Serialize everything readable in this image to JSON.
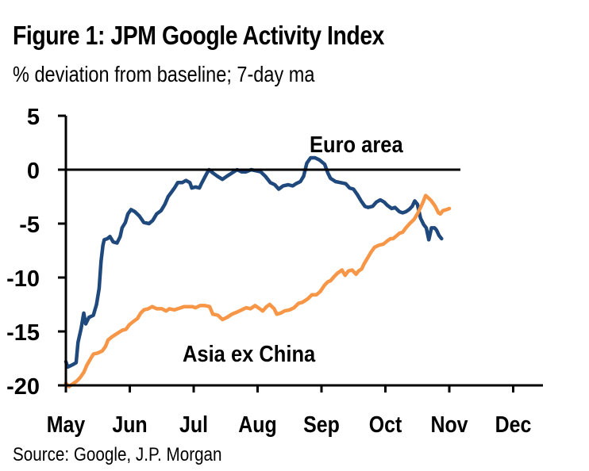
{
  "figure": {
    "title": "Figure 1: JPM Google Activity Index",
    "subtitle": "% deviation from baseline; 7-day ma",
    "source": "Source: Google, J.P. Morgan"
  },
  "colors": {
    "euro_area": "#1f497d",
    "asia_ex_china": "#f79646",
    "axis": "#000000"
  },
  "chart_data": {
    "type": "line",
    "title": "Figure 1: JPM Google Activity Index",
    "ylabel": "% deviation from baseline; 7-day ma",
    "xlabel": "",
    "x_unit": "months since start of May",
    "xlim": [
      0,
      7.5
    ],
    "ylim": [
      -20,
      5
    ],
    "yticks": [
      5,
      0,
      -5,
      -10,
      -15,
      -20
    ],
    "ytick_labels": [
      "5",
      "0",
      "-5",
      "-10",
      "-15",
      "-20"
    ],
    "xtick_labels": [
      "May",
      "Jun",
      "Jul",
      "Aug",
      "Sep",
      "Oct",
      "Nov",
      "Dec"
    ],
    "grid": false,
    "reference_line": 0,
    "series": [
      {
        "name": "Euro area",
        "color": "#1f497d",
        "points": [
          [
            0.0,
            -17.8
          ],
          [
            0.03,
            -18.3
          ],
          [
            0.1,
            -18.1
          ],
          [
            0.16,
            -17.9
          ],
          [
            0.19,
            -16.0
          ],
          [
            0.24,
            -14.7
          ],
          [
            0.28,
            -13.3
          ],
          [
            0.31,
            -14.3
          ],
          [
            0.36,
            -13.7
          ],
          [
            0.43,
            -13.5
          ],
          [
            0.48,
            -12.5
          ],
          [
            0.52,
            -11.0
          ],
          [
            0.55,
            -8.5
          ],
          [
            0.58,
            -7.0
          ],
          [
            0.6,
            -6.5
          ],
          [
            0.65,
            -6.4
          ],
          [
            0.69,
            -6.2
          ],
          [
            0.74,
            -6.7
          ],
          [
            0.8,
            -6.8
          ],
          [
            0.85,
            -6.2
          ],
          [
            0.88,
            -5.4
          ],
          [
            0.93,
            -4.9
          ],
          [
            0.97,
            -4.1
          ],
          [
            1.02,
            -3.7
          ],
          [
            1.08,
            -3.9
          ],
          [
            1.15,
            -4.3
          ],
          [
            1.22,
            -4.9
          ],
          [
            1.3,
            -5.0
          ],
          [
            1.36,
            -4.7
          ],
          [
            1.42,
            -4.1
          ],
          [
            1.49,
            -3.8
          ],
          [
            1.55,
            -3.2
          ],
          [
            1.6,
            -2.5
          ],
          [
            1.65,
            -2.1
          ],
          [
            1.7,
            -1.7
          ],
          [
            1.75,
            -1.2
          ],
          [
            1.82,
            -1.2
          ],
          [
            1.88,
            -1.0
          ],
          [
            1.94,
            -1.2
          ],
          [
            1.97,
            -1.7
          ],
          [
            2.03,
            -1.6
          ],
          [
            2.09,
            -1.7
          ],
          [
            2.12,
            -1.3
          ],
          [
            2.2,
            -0.4
          ],
          [
            2.24,
            0.0
          ],
          [
            2.3,
            -0.3
          ],
          [
            2.37,
            -0.6
          ],
          [
            2.45,
            -0.9
          ],
          [
            2.52,
            -0.6
          ],
          [
            2.6,
            -0.3
          ],
          [
            2.68,
            0.0
          ],
          [
            2.75,
            -0.2
          ],
          [
            2.82,
            -0.2
          ],
          [
            2.9,
            0.0
          ],
          [
            2.98,
            -0.1
          ],
          [
            3.05,
            -0.2
          ],
          [
            3.12,
            -0.6
          ],
          [
            3.2,
            -1.2
          ],
          [
            3.27,
            -1.4
          ],
          [
            3.33,
            -1.8
          ],
          [
            3.4,
            -1.5
          ],
          [
            3.48,
            -1.4
          ],
          [
            3.55,
            -1.5
          ],
          [
            3.6,
            -1.3
          ],
          [
            3.67,
            -1.1
          ],
          [
            3.72,
            -0.6
          ],
          [
            3.77,
            0.6
          ],
          [
            3.83,
            1.1
          ],
          [
            3.9,
            1.1
          ],
          [
            3.97,
            0.9
          ],
          [
            4.05,
            0.5
          ],
          [
            4.1,
            -0.3
          ],
          [
            4.14,
            -0.8
          ],
          [
            4.22,
            -1.1
          ],
          [
            4.3,
            -1.2
          ],
          [
            4.38,
            -1.3
          ],
          [
            4.44,
            -1.7
          ],
          [
            4.5,
            -1.8
          ],
          [
            4.56,
            -2.3
          ],
          [
            4.62,
            -2.9
          ],
          [
            4.68,
            -3.4
          ],
          [
            4.73,
            -3.5
          ],
          [
            4.8,
            -3.4
          ],
          [
            4.86,
            -3.0
          ],
          [
            4.92,
            -2.8
          ],
          [
            4.98,
            -3.0
          ],
          [
            5.03,
            -3.3
          ],
          [
            5.1,
            -3.6
          ],
          [
            5.15,
            -3.5
          ],
          [
            5.22,
            -3.9
          ],
          [
            5.27,
            -4.0
          ],
          [
            5.32,
            -3.9
          ],
          [
            5.37,
            -3.7
          ],
          [
            5.42,
            -3.4
          ],
          [
            5.46,
            -2.9
          ],
          [
            5.5,
            -3.2
          ],
          [
            5.55,
            -4.5
          ],
          [
            5.6,
            -5.1
          ],
          [
            5.64,
            -5.4
          ],
          [
            5.68,
            -6.5
          ],
          [
            5.72,
            -5.4
          ],
          [
            5.77,
            -5.4
          ],
          [
            5.8,
            -5.6
          ],
          [
            5.84,
            -6.1
          ],
          [
            5.88,
            -6.4
          ]
        ]
      },
      {
        "name": "Asia ex China",
        "color": "#f79646",
        "points": [
          [
            0.0,
            -19.8
          ],
          [
            0.05,
            -20.1
          ],
          [
            0.1,
            -19.9
          ],
          [
            0.17,
            -19.6
          ],
          [
            0.22,
            -19.3
          ],
          [
            0.28,
            -18.8
          ],
          [
            0.33,
            -18.1
          ],
          [
            0.38,
            -17.6
          ],
          [
            0.43,
            -17.1
          ],
          [
            0.5,
            -17.0
          ],
          [
            0.57,
            -16.8
          ],
          [
            0.62,
            -16.4
          ],
          [
            0.66,
            -15.8
          ],
          [
            0.72,
            -15.5
          ],
          [
            0.8,
            -15.2
          ],
          [
            0.88,
            -14.9
          ],
          [
            0.94,
            -14.8
          ],
          [
            0.99,
            -14.4
          ],
          [
            1.05,
            -14.1
          ],
          [
            1.12,
            -13.8
          ],
          [
            1.17,
            -13.3
          ],
          [
            1.22,
            -13.0
          ],
          [
            1.29,
            -12.9
          ],
          [
            1.35,
            -12.7
          ],
          [
            1.42,
            -12.9
          ],
          [
            1.5,
            -12.9
          ],
          [
            1.57,
            -13.1
          ],
          [
            1.62,
            -12.9
          ],
          [
            1.7,
            -13.0
          ],
          [
            1.75,
            -12.9
          ],
          [
            1.8,
            -12.8
          ],
          [
            1.85,
            -12.7
          ],
          [
            1.92,
            -12.7
          ],
          [
            1.98,
            -12.7
          ],
          [
            2.03,
            -12.8
          ],
          [
            2.1,
            -12.6
          ],
          [
            2.18,
            -12.6
          ],
          [
            2.25,
            -12.7
          ],
          [
            2.3,
            -13.4
          ],
          [
            2.38,
            -13.5
          ],
          [
            2.45,
            -13.9
          ],
          [
            2.52,
            -13.7
          ],
          [
            2.6,
            -13.4
          ],
          [
            2.68,
            -13.2
          ],
          [
            2.75,
            -13.0
          ],
          [
            2.82,
            -12.8
          ],
          [
            2.89,
            -12.9
          ],
          [
            2.96,
            -12.6
          ],
          [
            3.01,
            -12.8
          ],
          [
            3.08,
            -13.1
          ],
          [
            3.14,
            -12.7
          ],
          [
            3.19,
            -12.5
          ],
          [
            3.26,
            -12.9
          ],
          [
            3.3,
            -13.4
          ],
          [
            3.36,
            -13.3
          ],
          [
            3.42,
            -13.1
          ],
          [
            3.5,
            -13.0
          ],
          [
            3.57,
            -12.8
          ],
          [
            3.64,
            -12.4
          ],
          [
            3.7,
            -12.3
          ],
          [
            3.78,
            -12.0
          ],
          [
            3.85,
            -11.6
          ],
          [
            3.92,
            -11.6
          ],
          [
            3.98,
            -11.3
          ],
          [
            4.05,
            -10.7
          ],
          [
            4.1,
            -10.4
          ],
          [
            4.14,
            -10.3
          ],
          [
            4.2,
            -9.9
          ],
          [
            4.25,
            -9.6
          ],
          [
            4.32,
            -9.3
          ],
          [
            4.37,
            -9.8
          ],
          [
            4.42,
            -9.4
          ],
          [
            4.48,
            -9.3
          ],
          [
            4.54,
            -9.7
          ],
          [
            4.58,
            -9.4
          ],
          [
            4.63,
            -9.2
          ],
          [
            4.67,
            -8.7
          ],
          [
            4.72,
            -8.2
          ],
          [
            4.78,
            -7.6
          ],
          [
            4.83,
            -7.2
          ],
          [
            4.9,
            -7.0
          ],
          [
            4.97,
            -6.9
          ],
          [
            5.03,
            -6.6
          ],
          [
            5.08,
            -6.4
          ],
          [
            5.12,
            -6.4
          ],
          [
            5.18,
            -6.1
          ],
          [
            5.22,
            -5.9
          ],
          [
            5.27,
            -5.8
          ],
          [
            5.32,
            -5.4
          ],
          [
            5.38,
            -5.0
          ],
          [
            5.45,
            -4.6
          ],
          [
            5.5,
            -4.1
          ],
          [
            5.55,
            -3.5
          ],
          [
            5.59,
            -3.0
          ],
          [
            5.63,
            -2.4
          ],
          [
            5.67,
            -2.6
          ],
          [
            5.72,
            -2.9
          ],
          [
            5.78,
            -3.4
          ],
          [
            5.83,
            -4.0
          ],
          [
            5.86,
            -4.1
          ],
          [
            5.9,
            -3.8
          ],
          [
            5.96,
            -3.7
          ],
          [
            6.0,
            -3.6
          ]
        ]
      }
    ],
    "annotations": [
      {
        "text": "Euro area",
        "series": "Euro area",
        "placement": "above-right of peak"
      },
      {
        "text": "Asia ex China",
        "series": "Asia ex China",
        "placement": "below line"
      }
    ]
  }
}
